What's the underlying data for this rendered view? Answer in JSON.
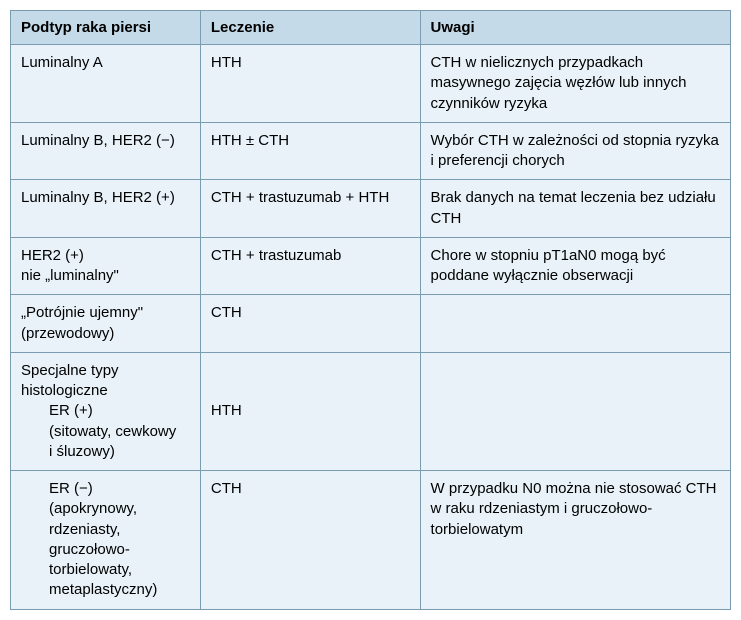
{
  "table": {
    "headers": {
      "col1": "Podtyp raka piersi",
      "col2": "Leczenie",
      "col3": "Uwagi"
    },
    "rows": [
      {
        "subtype": "Luminalny A",
        "treatment": "HTH",
        "notes": "CTH w nielicznych przypadkach masywnego zajęcia węzłów lub innych czynników ryzyka"
      },
      {
        "subtype": "Luminalny B, HER2 (−)",
        "treatment": "HTH ± CTH",
        "notes": "Wybór CTH w zależności od stopnia ryzyka i preferencji chorych"
      },
      {
        "subtype": "Luminalny B, HER2 (+)",
        "treatment": "CTH + trastuzumab + HTH",
        "notes": "Brak danych na temat leczenia bez udziału CTH"
      },
      {
        "subtype_line1": "HER2 (+)",
        "subtype_line2": "nie „luminalny\"",
        "treatment": "CTH + trastuzumab",
        "notes": "Chore w stopniu pT1aN0 mogą być poddane wyłącznie obserwacji"
      },
      {
        "subtype_line1": "„Potrójnie ujemny\"",
        "subtype_line2": "(przewodowy)",
        "treatment": "CTH",
        "notes": ""
      },
      {
        "subtype_line1": "Specjalne typy",
        "subtype_line2": "histologiczne",
        "subtype_indent1": "ER (+)",
        "subtype_sub1": "(sitowaty, cewkowy",
        "subtype_sub2": "i śluzowy)",
        "treatment": "HTH",
        "notes": ""
      },
      {
        "subtype_indent1": "ER (−)",
        "subtype_sub1": "(apokrynowy, rdzeniasty, gruczołowo-torbielowaty, metaplastyczny)",
        "treatment": "CTH",
        "notes": "W przypadku N0 można nie stosować CTH w raku rdzeniastym i gruczołowo-torbielowatym"
      }
    ],
    "colors": {
      "header_bg": "#c4dae8",
      "cell_bg": "#e8f2f8",
      "border": "#7a9bb0",
      "text": "#000000"
    },
    "column_widths": {
      "col1": 190,
      "col2": 220,
      "col3": 311
    },
    "font_size": 15
  }
}
